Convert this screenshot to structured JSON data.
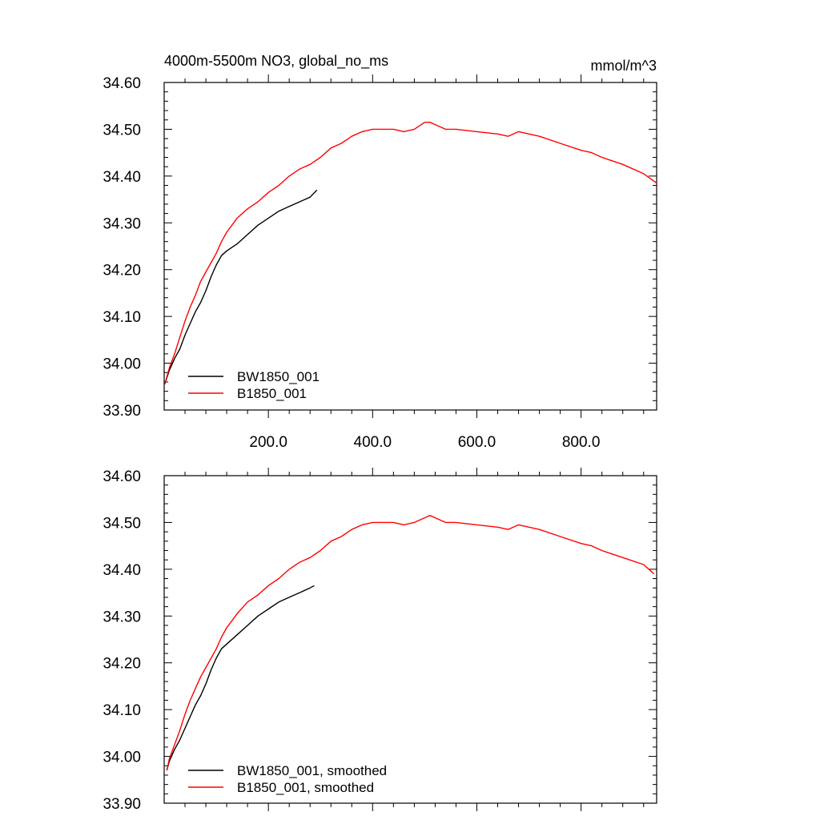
{
  "header": {
    "title": "4000m-5500m NO3, global_no_ms",
    "units": "mmol/m^3"
  },
  "colors": {
    "bw": "#000000",
    "b": "#ff0000"
  },
  "chart_data": [
    {
      "type": "line",
      "title": "4000m-5500m NO3, global_no_ms",
      "units": "mmol/m^3",
      "xlim": [
        0,
        945
      ],
      "ylim": [
        33.9,
        34.6
      ],
      "x_tick_labels": [
        "200.0",
        "400.0",
        "600.0",
        "800.0"
      ],
      "y_tick_labels": [
        "33.90",
        "34.00",
        "34.10",
        "34.20",
        "34.30",
        "34.40",
        "34.50",
        "34.60"
      ],
      "legend_position": "bottom-left",
      "series": [
        {
          "name": "BW1850_001",
          "color": "#000000",
          "x": [
            1,
            10,
            20,
            30,
            40,
            50,
            60,
            70,
            80,
            90,
            100,
            110,
            120,
            140,
            160,
            180,
            200,
            220,
            240,
            260,
            280,
            293
          ],
          "y": [
            33.955,
            33.985,
            34.01,
            34.03,
            34.06,
            34.085,
            34.11,
            34.13,
            34.155,
            34.185,
            34.21,
            34.23,
            34.24,
            34.255,
            34.275,
            34.295,
            34.31,
            34.325,
            34.335,
            34.345,
            34.355,
            34.37
          ]
        },
        {
          "name": "B1850_001",
          "color": "#ff0000",
          "x": [
            1,
            10,
            20,
            30,
            40,
            50,
            60,
            70,
            80,
            90,
            100,
            110,
            120,
            140,
            160,
            180,
            200,
            220,
            240,
            260,
            280,
            300,
            320,
            340,
            360,
            380,
            400,
            420,
            440,
            460,
            480,
            500,
            510,
            520,
            540,
            560,
            600,
            640,
            660,
            680,
            700,
            720,
            760,
            800,
            820,
            840,
            880,
            920,
            945
          ],
          "y": [
            33.955,
            33.99,
            34.02,
            34.055,
            34.09,
            34.12,
            34.145,
            34.175,
            34.195,
            34.215,
            34.235,
            34.26,
            34.28,
            34.31,
            34.33,
            34.345,
            34.365,
            34.38,
            34.4,
            34.415,
            34.425,
            34.44,
            34.46,
            34.47,
            34.485,
            34.495,
            34.5,
            34.5,
            34.5,
            34.495,
            34.5,
            34.515,
            34.515,
            34.51,
            34.5,
            34.5,
            34.495,
            34.49,
            34.485,
            34.495,
            34.49,
            34.485,
            34.47,
            34.455,
            34.45,
            34.44,
            34.425,
            34.405,
            34.385
          ]
        }
      ]
    },
    {
      "type": "line",
      "xlim": [
        0,
        945
      ],
      "ylim": [
        33.9,
        34.6
      ],
      "y_tick_labels": [
        "33.90",
        "34.00",
        "34.10",
        "34.20",
        "34.30",
        "34.40",
        "34.50",
        "34.60"
      ],
      "legend_position": "bottom-left",
      "series": [
        {
          "name": "BW1850_001, smoothed",
          "color": "#000000",
          "x": [
            5,
            10,
            20,
            30,
            40,
            50,
            60,
            70,
            80,
            90,
            100,
            110,
            120,
            140,
            160,
            180,
            200,
            220,
            240,
            260,
            280,
            288
          ],
          "y": [
            33.97,
            33.99,
            34.015,
            34.035,
            34.06,
            34.085,
            34.11,
            34.13,
            34.155,
            34.185,
            34.21,
            34.23,
            34.24,
            34.26,
            34.28,
            34.3,
            34.315,
            34.33,
            34.34,
            34.35,
            34.36,
            34.365
          ]
        },
        {
          "name": "B1850_001, smoothed",
          "color": "#ff0000",
          "x": [
            5,
            10,
            20,
            30,
            40,
            50,
            60,
            70,
            80,
            90,
            100,
            110,
            120,
            140,
            160,
            180,
            200,
            220,
            240,
            260,
            280,
            300,
            320,
            340,
            360,
            380,
            400,
            420,
            440,
            460,
            480,
            500,
            510,
            520,
            540,
            560,
            600,
            640,
            660,
            680,
            700,
            720,
            760,
            800,
            820,
            840,
            880,
            920,
            940
          ],
          "y": [
            33.97,
            33.995,
            34.025,
            34.055,
            34.09,
            34.12,
            34.145,
            34.17,
            34.19,
            34.21,
            34.23,
            34.255,
            34.275,
            34.305,
            34.33,
            34.345,
            34.365,
            34.38,
            34.4,
            34.415,
            34.425,
            34.44,
            34.46,
            34.47,
            34.485,
            34.495,
            34.5,
            34.5,
            34.5,
            34.495,
            34.5,
            34.51,
            34.515,
            34.51,
            34.5,
            34.5,
            34.495,
            34.49,
            34.485,
            34.495,
            34.49,
            34.485,
            34.47,
            34.455,
            34.45,
            34.44,
            34.425,
            34.41,
            34.39
          ]
        }
      ]
    }
  ]
}
